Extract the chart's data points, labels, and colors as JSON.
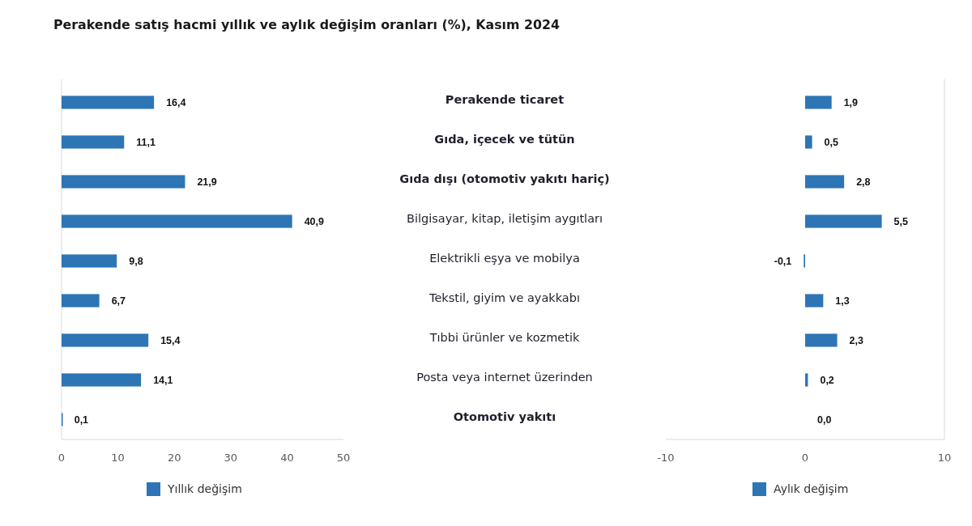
{
  "chart_data": [
    {
      "type": "bar",
      "orientation": "horizontal",
      "title": "Perakende satış hacmi yıllık ve aylık değişim oranları (%), Kasım 2024",
      "categories": [
        "Perakende ticaret",
        "Gıda, içecek ve tütün",
        "Gıda dışı (otomotiv yakıtı hariç)",
        "Bilgisayar, kitap, iletişim aygıtları",
        "Elektrikli eşya ve mobilya",
        "Tekstil, giyim ve ayakkabı",
        "Tıbbi ürünler ve kozmetik",
        "Posta veya internet üzerinden",
        "Otomotiv yakıtı"
      ],
      "series": [
        {
          "name": "Yıllık değişim",
          "color": "#2e75b6",
          "values": [
            16.4,
            11.1,
            21.9,
            40.9,
            9.8,
            6.7,
            15.4,
            14.1,
            0.1
          ],
          "value_labels": [
            "16,4",
            "11,1",
            "21,9",
            "40,9",
            "9,8",
            "6,7",
            "15,4",
            "14,1",
            "0,1"
          ]
        }
      ],
      "xlim": [
        0,
        50
      ],
      "xticks": [
        0,
        10,
        20,
        30,
        40,
        50
      ],
      "legend": "bottom"
    },
    {
      "type": "bar",
      "orientation": "horizontal",
      "categories": [
        null,
        null,
        null,
        null,
        null,
        null,
        null,
        null,
        null
      ],
      "series": [
        {
          "name": "Aylık değişim",
          "color": "#2e75b6",
          "values": [
            1.9,
            0.5,
            2.8,
            5.5,
            -0.1,
            1.3,
            2.3,
            0.2,
            0
          ],
          "value_labels": [
            "1,9",
            "0,5",
            "2,8",
            "5,5",
            "-0,1",
            "1,3",
            "2,3",
            "0,2",
            "0,0"
          ]
        }
      ],
      "xlim": [
        -10,
        10
      ],
      "xticks": [
        -10,
        0,
        10
      ],
      "legend": "bottom"
    }
  ]
}
